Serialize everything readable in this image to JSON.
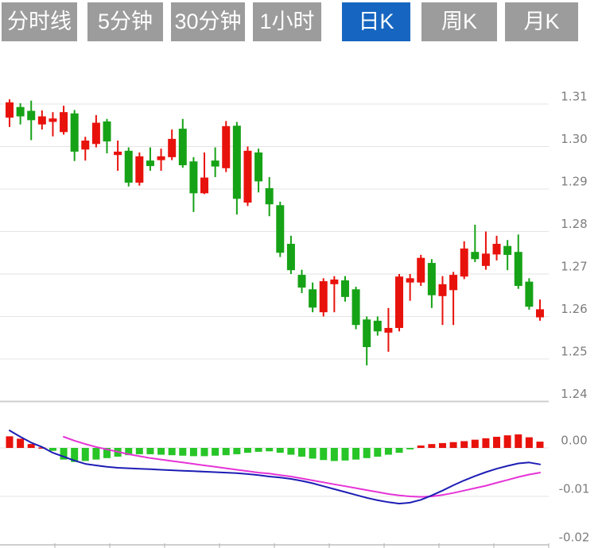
{
  "toolbar": {
    "tabs": [
      {
        "label": "分时线",
        "name": "tab-time-share",
        "active": false
      },
      {
        "label": "5分钟",
        "name": "tab-5min",
        "active": false
      },
      {
        "label": "30分钟",
        "name": "tab-30min",
        "active": false
      },
      {
        "label": "1小时",
        "name": "tab-1hour",
        "active": false
      },
      {
        "label": "日K",
        "name": "tab-daily-k",
        "active": true
      },
      {
        "label": "周K",
        "name": "tab-weekly-k",
        "active": false
      },
      {
        "label": "月K",
        "name": "tab-monthly-k",
        "active": false
      }
    ]
  },
  "colors": {
    "up": "#e8120c",
    "down": "#16a216",
    "hist_up": "#e8120c",
    "hist_down": "#27c527",
    "line_magenta": "#e633d6",
    "line_blue": "#1d1db5",
    "grid": "#e3e3e3",
    "grid_strong": "#cfcfcf",
    "axis_label": "#7d7d7d",
    "tab_bg": "#9c9c9c",
    "tab_active_bg": "#1666c1",
    "tab_text": "#ffffff"
  },
  "chart_data": [
    {
      "type": "candlestick",
      "panel": "price",
      "title": "",
      "xlabel": "",
      "ylabel": "",
      "grid": true,
      "legend_position": "none",
      "ylim": [
        1.238,
        1.316
      ],
      "y_axis_ticks": [
        1.31,
        1.3,
        1.29,
        1.28,
        1.27,
        1.26,
        1.25,
        1.24
      ],
      "y_axis_labels": [
        "1.31",
        "1.30",
        "1.29",
        "1.28",
        "1.27",
        "1.26",
        "1.25",
        "1.24"
      ],
      "candles_format": "[open, high, low, close] — red = close above open (up), green = down",
      "candles": [
        [
          1.3068,
          1.3111,
          1.3046,
          1.3104
        ],
        [
          1.3093,
          1.3102,
          1.3052,
          1.3071
        ],
        [
          1.3084,
          1.3108,
          1.3015,
          1.3062
        ],
        [
          1.3052,
          1.3085,
          1.304,
          1.3071
        ],
        [
          1.3058,
          1.3081,
          1.3024,
          1.3066
        ],
        [
          1.3034,
          1.3096,
          1.3028,
          1.3081
        ],
        [
          1.3078,
          1.3086,
          1.2966,
          1.2988
        ],
        [
          1.2993,
          1.3023,
          1.2967,
          1.3014
        ],
        [
          1.3006,
          1.3074,
          1.2998,
          1.3056
        ],
        [
          1.3059,
          1.3065,
          1.2984,
          1.3012
        ],
        [
          1.298,
          1.3014,
          1.2943,
          1.2988
        ],
        [
          1.299,
          1.2998,
          1.2906,
          1.2915
        ],
        [
          1.2915,
          1.2986,
          1.2908,
          1.2977
        ],
        [
          1.2967,
          1.2998,
          1.2943,
          1.2954
        ],
        [
          1.2968,
          1.2995,
          1.2943,
          1.2977
        ],
        [
          1.2975,
          1.304,
          1.2968,
          1.3018
        ],
        [
          1.3042,
          1.3065,
          1.295,
          1.2956
        ],
        [
          1.2965,
          1.2975,
          1.2846,
          1.289
        ],
        [
          1.289,
          1.2986,
          1.2888,
          1.2927
        ],
        [
          1.2967,
          1.2998,
          1.2928,
          1.2953
        ],
        [
          1.2949,
          1.306,
          1.294,
          1.3048
        ],
        [
          1.3049,
          1.3058,
          1.284,
          1.2877
        ],
        [
          1.2868,
          1.3,
          1.286,
          1.299
        ],
        [
          1.2986,
          1.2995,
          1.2892,
          1.2918
        ],
        [
          1.2902,
          1.2928,
          1.2836,
          1.2864
        ],
        [
          1.2862,
          1.287,
          1.274,
          1.275
        ],
        [
          1.2771,
          1.279,
          1.27,
          1.2709
        ],
        [
          1.2698,
          1.271,
          1.2655,
          1.2668
        ],
        [
          1.2664,
          1.268,
          1.261,
          1.2621
        ],
        [
          1.261,
          1.269,
          1.26,
          1.2683
        ],
        [
          1.2676,
          1.2695,
          1.261,
          1.2687
        ],
        [
          1.2685,
          1.2695,
          1.2635,
          1.2646
        ],
        [
          1.2664,
          1.267,
          1.257,
          1.258
        ],
        [
          1.2593,
          1.26,
          1.2485,
          1.2528
        ],
        [
          1.259,
          1.26,
          1.2555,
          1.2565
        ],
        [
          1.2562,
          1.262,
          1.2517,
          1.2573
        ],
        [
          1.2573,
          1.27,
          1.2565,
          1.2694
        ],
        [
          1.268,
          1.27,
          1.2637,
          1.269
        ],
        [
          1.268,
          1.2745,
          1.2672,
          1.2738
        ],
        [
          1.2726,
          1.2735,
          1.262,
          1.265
        ],
        [
          1.2648,
          1.2695,
          1.258,
          1.2676
        ],
        [
          1.2662,
          1.2705,
          1.258,
          1.2698
        ],
        [
          1.2694,
          1.2777,
          1.2688,
          1.276
        ],
        [
          1.2752,
          1.2816,
          1.2728,
          1.2735
        ],
        [
          1.2719,
          1.28,
          1.271,
          1.2748
        ],
        [
          1.2746,
          1.279,
          1.2732,
          1.2771
        ],
        [
          1.2766,
          1.278,
          1.2709,
          1.2745
        ],
        [
          1.2752,
          1.2793,
          1.2665,
          1.2672
        ],
        [
          1.2682,
          1.269,
          1.2616,
          1.2623
        ],
        [
          1.2598,
          1.264,
          1.259,
          1.2617
        ]
      ]
    },
    {
      "type": "bar",
      "panel": "macd-indicator",
      "grid": true,
      "legend_position": "none",
      "ylim": [
        -0.021,
        0.005
      ],
      "y_axis_ticks": [
        0.0,
        -0.01,
        -0.02
      ],
      "y_axis_labels": [
        "0.00",
        "-0.01",
        "-0.02"
      ],
      "histogram": [
        0.0024,
        0.0019,
        0.0008,
        0.0001,
        -0.0006,
        -0.0024,
        -0.0029,
        -0.0027,
        -0.0024,
        -0.0021,
        -0.0018,
        -0.0015,
        -0.0013,
        -0.0013,
        -0.0014,
        -0.0015,
        -0.0016,
        -0.0017,
        -0.0017,
        -0.0016,
        -0.0015,
        -0.0013,
        -0.001,
        -0.0008,
        -0.0007,
        -0.001,
        -0.0014,
        -0.0018,
        -0.0022,
        -0.0025,
        -0.0027,
        -0.0026,
        -0.0024,
        -0.0021,
        -0.0018,
        -0.0014,
        -0.001,
        -0.0003,
        0.0005,
        0.0008,
        0.001,
        0.0012,
        0.0014,
        0.0017,
        0.002,
        0.0023,
        0.0026,
        0.0028,
        0.0022,
        0.0013
      ],
      "series": [
        {
          "name": "line-magenta",
          "color": "#e633d6",
          "values": [
            null,
            null,
            null,
            null,
            null,
            0.0023,
            0.0015,
            0.0008,
            0.0002,
            -0.0003,
            -0.0008,
            -0.0013,
            -0.0017,
            -0.0021,
            -0.0024,
            -0.0027,
            -0.003,
            -0.0033,
            -0.0036,
            -0.0039,
            -0.0042,
            -0.0045,
            -0.0048,
            -0.0051,
            -0.0053,
            -0.0056,
            -0.0059,
            -0.0063,
            -0.0067,
            -0.0071,
            -0.0075,
            -0.0079,
            -0.0083,
            -0.0087,
            -0.0091,
            -0.0095,
            -0.0098,
            -0.01,
            -0.0101,
            -0.01,
            -0.0097,
            -0.0093,
            -0.0088,
            -0.0083,
            -0.0078,
            -0.0072,
            -0.0066,
            -0.006,
            -0.0055,
            -0.0051
          ]
        },
        {
          "name": "line-blue",
          "color": "#1d1db5",
          "values": [
            0.0036,
            0.0023,
            0.0011,
            0.0002,
            -0.001,
            -0.0018,
            -0.0026,
            -0.0033,
            -0.0036,
            -0.0039,
            -0.0041,
            -0.0042,
            -0.0043,
            -0.0044,
            -0.0045,
            -0.0046,
            -0.0047,
            -0.0048,
            -0.0049,
            -0.005,
            -0.0051,
            -0.0052,
            -0.0054,
            -0.0056,
            -0.0059,
            -0.0061,
            -0.0064,
            -0.0068,
            -0.0073,
            -0.0079,
            -0.0085,
            -0.0091,
            -0.0097,
            -0.0103,
            -0.0108,
            -0.0112,
            -0.0115,
            -0.0113,
            -0.0107,
            -0.0098,
            -0.0088,
            -0.0077,
            -0.0067,
            -0.0058,
            -0.005,
            -0.0043,
            -0.0037,
            -0.0032,
            -0.003,
            -0.0034
          ]
        }
      ],
      "x_axis_tick_marks": 10,
      "x_axis_labels": []
    }
  ]
}
